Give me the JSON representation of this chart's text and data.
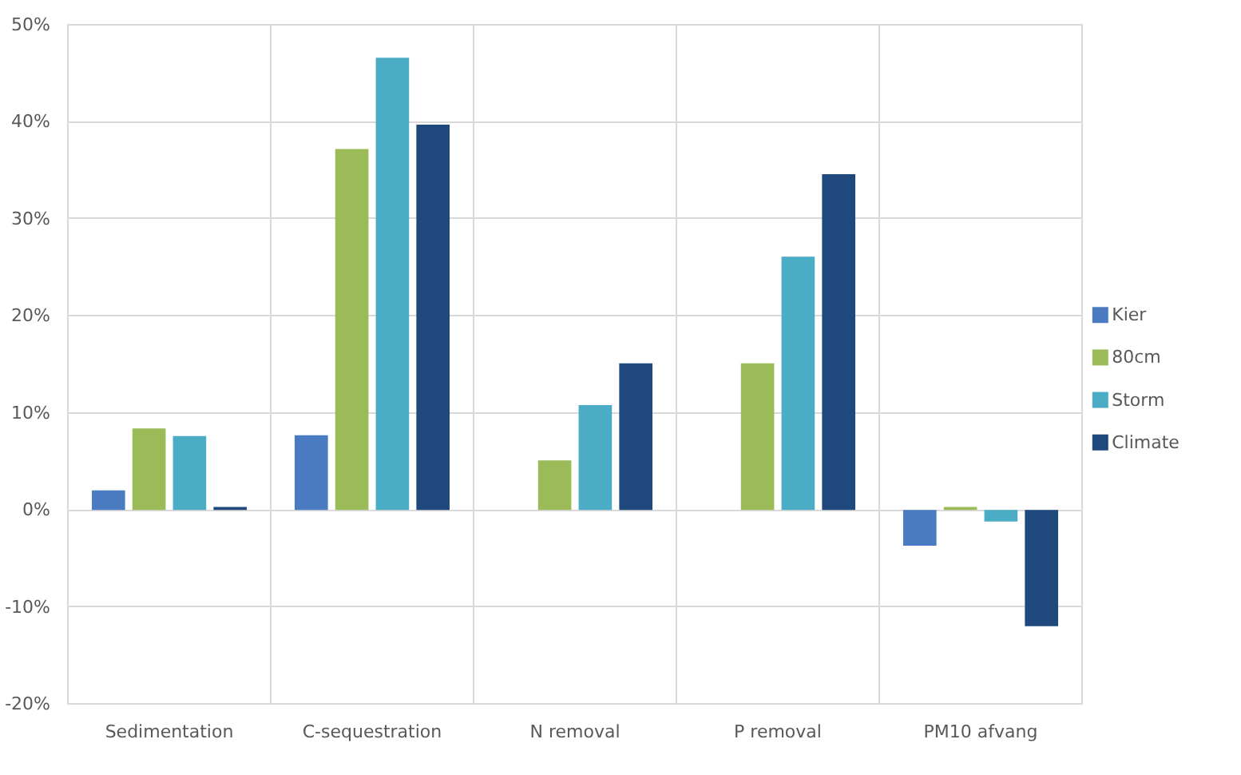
{
  "chart_data": {
    "type": "bar",
    "categories": [
      "Sedimentation",
      "C-sequestration",
      "N removal",
      "P removal",
      "PM10 afvang"
    ],
    "series": [
      {
        "name": "Kier",
        "color": "#4a7bc0",
        "values": [
          2.0,
          7.7,
          0,
          0,
          -3.7
        ]
      },
      {
        "name": "80cm",
        "color": "#9bbb59",
        "values": [
          8.4,
          37.2,
          5.1,
          15.1,
          0.3
        ]
      },
      {
        "name": "Storm",
        "color": "#4bacc6",
        "values": [
          7.6,
          46.6,
          10.8,
          26.1,
          -1.2
        ]
      },
      {
        "name": "Climate",
        "color": "#1f497d",
        "values": [
          0.3,
          39.7,
          15.1,
          34.6,
          -12.0
        ]
      }
    ],
    "ylim": [
      -20,
      50
    ],
    "yticks": [
      {
        "value": -20,
        "label": "-20%"
      },
      {
        "value": -10,
        "label": "-10%"
      },
      {
        "value": 0,
        "label": "0%"
      },
      {
        "value": 10,
        "label": "10%"
      },
      {
        "value": 20,
        "label": "20%"
      },
      {
        "value": 30,
        "label": "30%"
      },
      {
        "value": 40,
        "label": "40%"
      },
      {
        "value": 50,
        "label": "50%"
      }
    ],
    "grid": true,
    "legend": "right"
  }
}
